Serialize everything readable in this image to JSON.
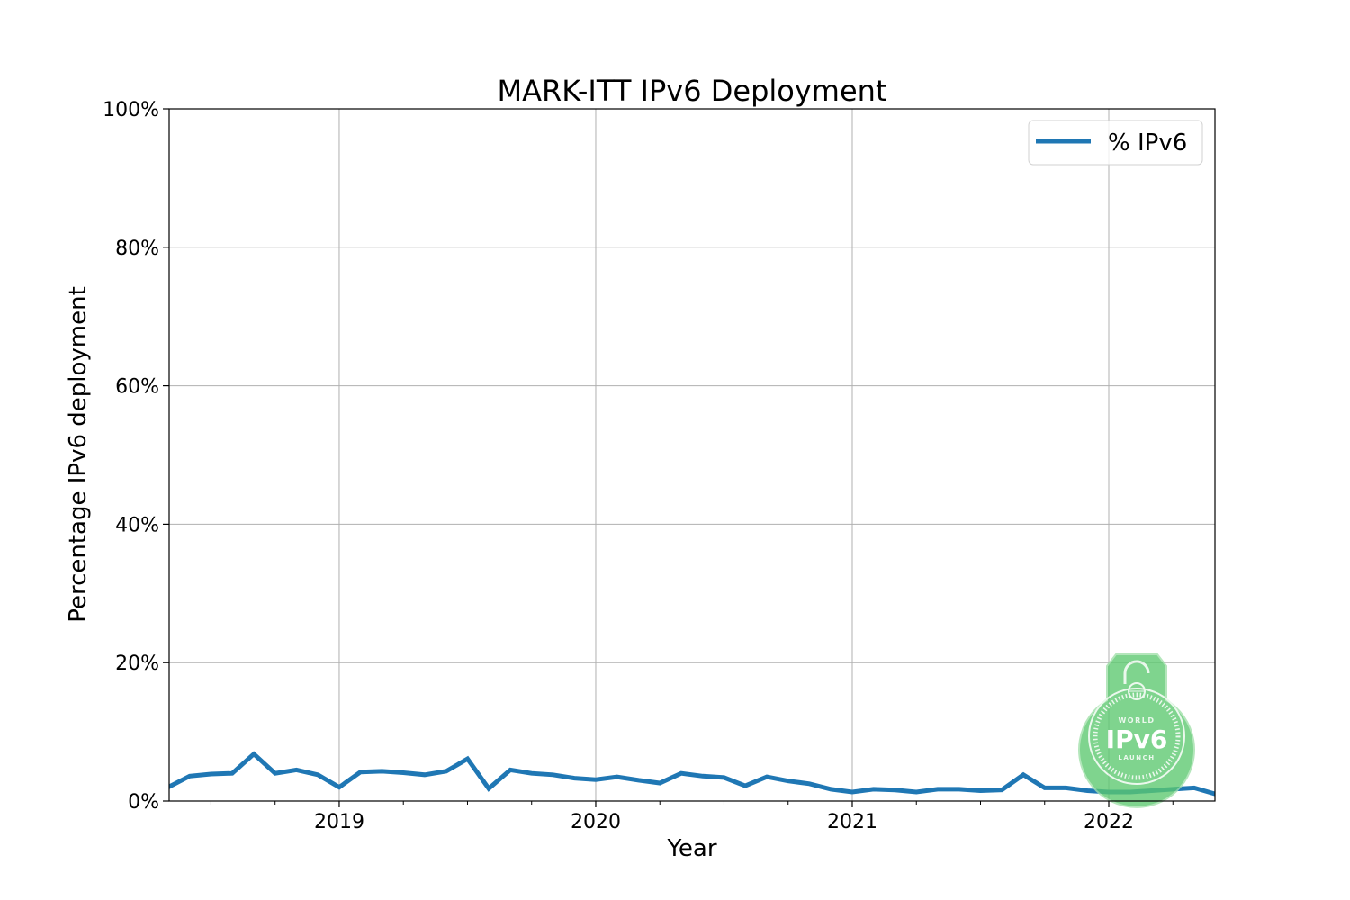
{
  "chart_data": {
    "type": "line",
    "title": "MARK-ITT IPv6 Deployment",
    "xlabel": "Year",
    "ylabel": "Percentage IPv6 deployment",
    "xlim": [
      2018.337,
      2022.414
    ],
    "ylim": [
      0,
      100
    ],
    "grid": true,
    "legend_position": "top-right",
    "x_ticks": [
      2019,
      2020,
      2021,
      2022
    ],
    "x_tick_labels": [
      "2019",
      "2020",
      "2021",
      "2022"
    ],
    "x_minor_ticks": [
      2018.5,
      2018.75,
      2019.25,
      2019.5,
      2019.75,
      2020.25,
      2020.5,
      2020.75,
      2021.25,
      2021.5,
      2021.75,
      2022.25
    ],
    "y_ticks": [
      0,
      20,
      40,
      60,
      80,
      100
    ],
    "y_tick_labels": [
      "0%",
      "20%",
      "40%",
      "60%",
      "80%",
      "100%"
    ],
    "series": [
      {
        "name": "% IPv6",
        "color": "#1f77b4",
        "x": [
          2018.333,
          2018.417,
          2018.5,
          2018.583,
          2018.667,
          2018.75,
          2018.833,
          2018.917,
          2019.0,
          2019.083,
          2019.167,
          2019.25,
          2019.333,
          2019.417,
          2019.5,
          2019.583,
          2019.667,
          2019.75,
          2019.833,
          2019.917,
          2020.0,
          2020.083,
          2020.167,
          2020.25,
          2020.333,
          2020.417,
          2020.5,
          2020.583,
          2020.667,
          2020.75,
          2020.833,
          2020.917,
          2021.0,
          2021.083,
          2021.167,
          2021.25,
          2021.333,
          2021.417,
          2021.5,
          2021.583,
          2021.667,
          2021.75,
          2021.833,
          2021.917,
          2022.0,
          2022.083,
          2022.167,
          2022.25,
          2022.333,
          2022.417
        ],
        "values": [
          2.0,
          3.6,
          3.9,
          4.0,
          6.8,
          4.0,
          4.5,
          3.8,
          2.0,
          4.2,
          4.3,
          4.1,
          3.8,
          4.3,
          6.1,
          1.8,
          4.5,
          4.0,
          3.8,
          3.3,
          3.1,
          3.5,
          3.0,
          2.6,
          4.0,
          3.6,
          3.4,
          2.2,
          3.5,
          2.9,
          2.5,
          1.7,
          1.3,
          1.7,
          1.6,
          1.3,
          1.7,
          1.7,
          1.5,
          1.6,
          3.8,
          1.9,
          1.9,
          1.5,
          1.3,
          1.3,
          1.5,
          1.7,
          1.9,
          1.0
        ]
      }
    ]
  },
  "logo": {
    "name": "World IPv6 Launch",
    "top_text": "WORLD",
    "main_text": "IPv6",
    "bottom_text": "LAUNCH",
    "color": "#5cc96f"
  }
}
